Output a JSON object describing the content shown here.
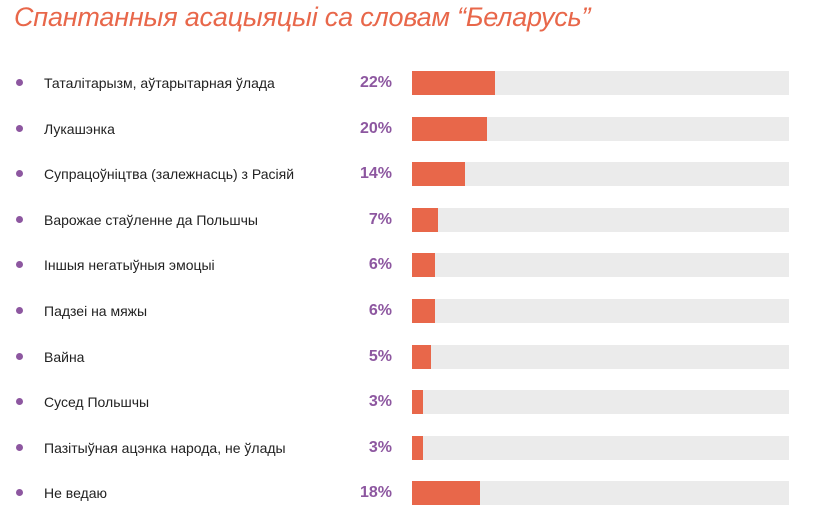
{
  "title": "Спантанныя асацыяцыі са словам “Беларусь”",
  "colors": {
    "accent": "#e8674a",
    "value_text": "#8d57a0",
    "bullet": "#8d57a0",
    "track": "#ebebeb"
  },
  "chart_data": {
    "type": "bar",
    "orientation": "horizontal",
    "title": "Спантанныя асацыяцыі са словам “Беларусь”",
    "categories": [
      "Таталітарызм, аўтарытарная ўлада",
      "Лукашэнка",
      "Супрацоўніцтва (залежнасць) з Расіяй",
      "Варожае стаўленне да Польшчы",
      "Іншыя негатыўныя эмоцыі",
      "Падзеі на мяжы",
      "Вайна",
      "Сусед Польшчы",
      "Пазітыўная ацэнка народа, не ўлады",
      "Не ведаю"
    ],
    "values": [
      22,
      20,
      14,
      7,
      6,
      6,
      5,
      3,
      3,
      18
    ],
    "value_labels": [
      "22%",
      "20%",
      "14%",
      "7%",
      "6%",
      "6%",
      "5%",
      "3%",
      "3%",
      "18%"
    ],
    "unit": "%",
    "xlim": [
      0,
      100
    ],
    "grid": false,
    "legend": "none"
  }
}
